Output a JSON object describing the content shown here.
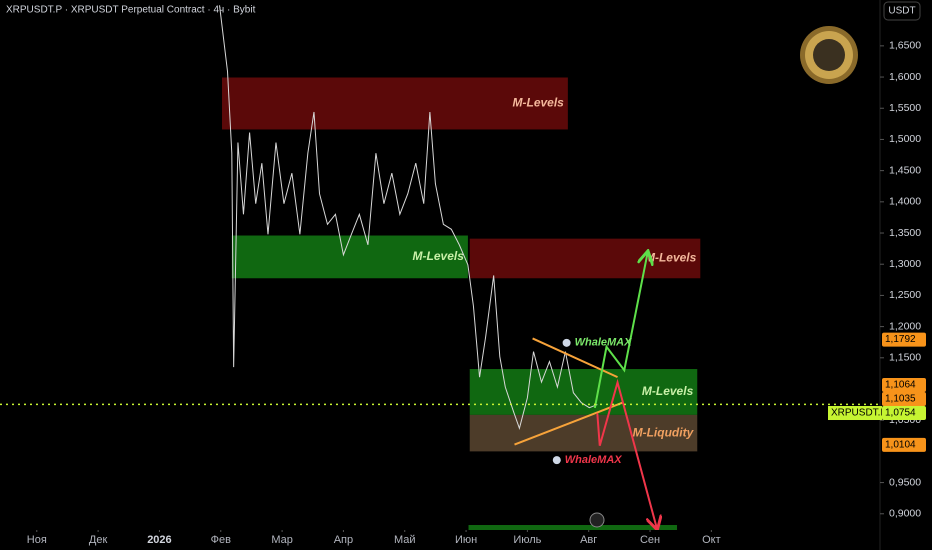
{
  "chart_data": {
    "type": "line",
    "title": "XRPUSDT.P · XRPUSDT Perpetual Contract · 4ч · Bybit",
    "currency": "USDT",
    "color": "#d8d8d8",
    "x": [
      2.98,
      3.11,
      3.18,
      3.21,
      3.28,
      3.37,
      3.47,
      3.57,
      3.67,
      3.77,
      3.9,
      4.03,
      4.16,
      4.29,
      4.42,
      4.52,
      4.61,
      4.74,
      4.87,
      5.0,
      5.13,
      5.26,
      5.4,
      5.53,
      5.66,
      5.79,
      5.92,
      6.05,
      6.18,
      6.31,
      6.41,
      6.5,
      6.63,
      6.76,
      6.89,
      7.03,
      7.12,
      7.22,
      7.32,
      7.45,
      7.55,
      7.64,
      7.78,
      7.87,
      8.0,
      8.1,
      8.23,
      8.36,
      8.49,
      8.62,
      8.75,
      8.88,
      9.01,
      9.14
    ],
    "values": [
      1.715,
      1.609,
      1.478,
      1.135,
      1.495,
      1.38,
      1.511,
      1.397,
      1.462,
      1.348,
      1.495,
      1.397,
      1.446,
      1.348,
      1.478,
      1.544,
      1.413,
      1.364,
      1.38,
      1.315,
      1.348,
      1.38,
      1.331,
      1.478,
      1.397,
      1.446,
      1.38,
      1.413,
      1.462,
      1.397,
      1.544,
      1.429,
      1.364,
      1.356,
      1.331,
      1.299,
      1.233,
      1.119,
      1.184,
      1.282,
      1.152,
      1.103,
      1.062,
      1.037,
      1.086,
      1.16,
      1.111,
      1.144,
      1.103,
      1.16,
      1.094,
      1.078,
      1.07,
      1.075
    ],
    "xlim": [
      -0.6,
      13.75
    ],
    "ylim": [
      0.874,
      1.7235
    ],
    "xticks": [
      {
        "value": 0,
        "label": "Ноя"
      },
      {
        "value": 1,
        "label": "Дек"
      },
      {
        "value": 2,
        "label": "2026"
      },
      {
        "value": 3,
        "label": "Фев"
      },
      {
        "value": 4,
        "label": "Мар"
      },
      {
        "value": 5,
        "label": "Апр"
      },
      {
        "value": 6,
        "label": "Май"
      },
      {
        "value": 7,
        "label": "Июн"
      },
      {
        "value": 8,
        "label": "Июль"
      },
      {
        "value": 9,
        "label": "Авг"
      },
      {
        "value": 10,
        "label": "Сен"
      },
      {
        "value": 11,
        "label": "Окт"
      }
    ],
    "yticks": [
      {
        "value": 1.65,
        "label": "1,6500"
      },
      {
        "value": 1.6,
        "label": "1,6000"
      },
      {
        "value": 1.55,
        "label": "1,5500"
      },
      {
        "value": 1.5,
        "label": "1,5000"
      },
      {
        "value": 1.45,
        "label": "1,4500"
      },
      {
        "value": 1.4,
        "label": "1,4000"
      },
      {
        "value": 1.35,
        "label": "1,3500"
      },
      {
        "value": 1.3,
        "label": "1,3000"
      },
      {
        "value": 1.25,
        "label": "1,2500"
      },
      {
        "value": 1.2,
        "label": "1,2000"
      },
      {
        "value": 1.15,
        "label": "1,1500"
      },
      {
        "value": 1.05,
        "label": "1,0500"
      },
      {
        "value": 0.95,
        "label": "0,9500"
      },
      {
        "value": 0.9,
        "label": "0,9000"
      }
    ],
    "price_labels": [
      {
        "value": 1.1792,
        "label": "1,1792",
        "color": "#f7931a"
      },
      {
        "value": 1.1064,
        "label": "1,1064",
        "color": "#f7931a"
      },
      {
        "value": 1.1035,
        "label": "1,1035",
        "color": "#f7931a"
      },
      {
        "value": 1.0754,
        "label": "1,0754",
        "color": "#c6f432",
        "symbol": "XRPUSDT.P"
      },
      {
        "value": 1.0104,
        "label": "1,0104",
        "color": "#f7931a"
      }
    ],
    "zones": [
      {
        "label": "M-Levels",
        "color": "#6b0a0a",
        "label_color": "#f4b89c",
        "x": [
          3.02,
          8.66
        ],
        "y": [
          1.516,
          1.5993
        ]
      },
      {
        "label": "M-Levels",
        "color": "#137a14",
        "label_color": "#c9f0a8",
        "x": [
          3.18,
          7.03
        ],
        "y": [
          1.2775,
          1.346
        ]
      },
      {
        "label": "M-Levels",
        "color": "#6b0a0a",
        "label_color": "#f4b89c",
        "x": [
          7.06,
          10.82
        ],
        "y": [
          1.2775,
          1.341
        ]
      },
      {
        "label": "M-Levels",
        "color": "#137a14",
        "label_color": "#c9f0a8",
        "x": [
          7.06,
          10.77
        ],
        "y": [
          1.0585,
          1.132
        ]
      },
      {
        "label": "M-Liqudity",
        "color": "#5a4630",
        "label_color": "#f0a060",
        "x": [
          7.06,
          10.77
        ],
        "y": [
          1.0,
          1.0585
        ]
      },
      {
        "color": "#137a14",
        "x": [
          7.04,
          10.44
        ],
        "y": [
          0.85,
          0.882
        ]
      }
    ],
    "trendlines": [
      {
        "color": "#f7a33a",
        "x": [
          8.085,
          9.47
        ],
        "y": [
          1.181,
          1.119
        ]
      },
      {
        "color": "#f7a33a",
        "x": [
          7.79,
          9.55
        ],
        "y": [
          1.011,
          1.078
        ]
      }
    ],
    "arrows": [
      {
        "color": "#5ee04a",
        "x": [
          9.1,
          9.29,
          9.58,
          9.96
        ],
        "y": [
          1.0696,
          1.1676,
          1.1301,
          1.3183
        ]
      },
      {
        "color": "#f0364a",
        "x": [
          9.14,
          9.18,
          9.47,
          10.11
        ],
        "y": [
          1.0614,
          1.0091,
          1.1105,
          0.8771
        ]
      }
    ],
    "annotations": [
      {
        "text": "WhaleMAX",
        "color": "#7be86a",
        "x": 8.77,
        "y": 1.174
      },
      {
        "text": "WhaleMAX",
        "color": "#f0364a",
        "x": 8.61,
        "y": 0.986
      }
    ]
  }
}
